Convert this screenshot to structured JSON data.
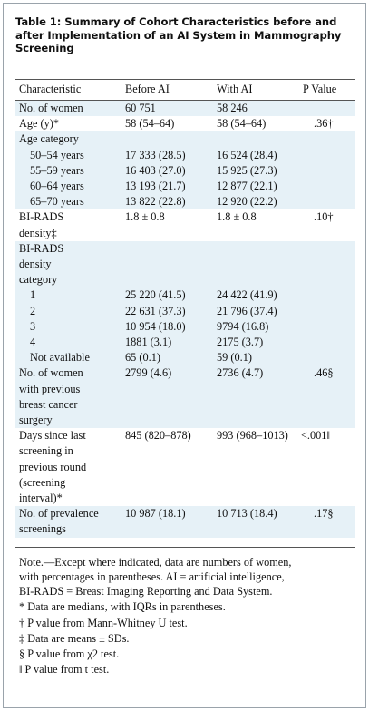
{
  "title": "Table 1: Summary of Cohort Characteristics before and after Implementation of an AI System in Mammography Screening",
  "header": {
    "characteristic": "Characteristic",
    "before": "Before AI",
    "with": "With AI",
    "pvalue": "P Value"
  },
  "rows": {
    "no_women": {
      "label": "No. of women",
      "before": "60 751",
      "with": "58 246"
    },
    "age": {
      "label": "Age (y)*",
      "before": "58 (54–64)",
      "with": "58 (54–64)",
      "p": ".36†"
    },
    "age_category": {
      "label": "Age category"
    },
    "age_50_54": {
      "label": "50–54 years",
      "before": "17 333 (28.5)",
      "with": "16 524 (28.4)"
    },
    "age_55_59": {
      "label": "55–59 years",
      "before": "16 403 (27.0)",
      "with": "15 925 (27.3)"
    },
    "age_60_64": {
      "label": "60–64 years",
      "before": "13 193 (21.7)",
      "with": "12 877 (22.1)"
    },
    "age_65_70": {
      "label": "65–70 years",
      "before": "13 822 (22.8)",
      "with": "12 920 (22.2)"
    },
    "birads_density": {
      "label_1": "BI-RADS",
      "label_2": "density‡",
      "before": "1.8 ± 0.8",
      "with": "1.8 ± 0.8",
      "p": ".10†"
    },
    "birads_category": {
      "label_1": "BI-RADS",
      "label_2": "density",
      "label_3": "category"
    },
    "cat_1": {
      "label": "1",
      "before": "25 220 (41.5)",
      "with": "24 422 (41.9)"
    },
    "cat_2": {
      "label": "2",
      "before": "22 631 (37.3)",
      "with": "21 796 (37.4)"
    },
    "cat_3": {
      "label": "3",
      "before": "10 954 (18.0)",
      "with": "9794 (16.8)"
    },
    "cat_4": {
      "label": "4",
      "before": "1881 (3.1)",
      "with": "2175 (3.7)"
    },
    "cat_na": {
      "label": "Not available",
      "before": "65 (0.1)",
      "with": "59 (0.1)"
    },
    "prev_surgery": {
      "label_1": "No. of women",
      "label_2": "with previous",
      "label_3": "breast cancer",
      "label_4": "surgery",
      "before": "2799 (4.6)",
      "with": "2736 (4.7)",
      "p": ".46§"
    },
    "days_since": {
      "label_1": "Days since last",
      "label_2": "screening in",
      "label_3": "previous round",
      "label_4": "(screening",
      "label_5": "interval)*",
      "before": "845 (820–878)",
      "with": "993 (968–1013)",
      "p": "<.001‖"
    },
    "prevalence": {
      "label_1": "No. of prevalence",
      "label_2": "screenings",
      "before": "10 987 (18.1)",
      "with": "10 713 (18.4)",
      "p": ".17§"
    }
  },
  "notes": {
    "main_1": "Note.—Except where indicated, data are numbers of women,",
    "main_2": "with percentages in parentheses. AI = artificial intelligence,",
    "main_3": "BI-RADS = Breast Imaging Reporting and Data System.",
    "star": "* Data are medians, with IQRs in parentheses.",
    "dagger": "† P value from Mann-Whitney U test.",
    "ddagger": "‡ Data are means ± SDs.",
    "section": "§ P value from χ2 test.",
    "para": "‖ P value from t test."
  }
}
